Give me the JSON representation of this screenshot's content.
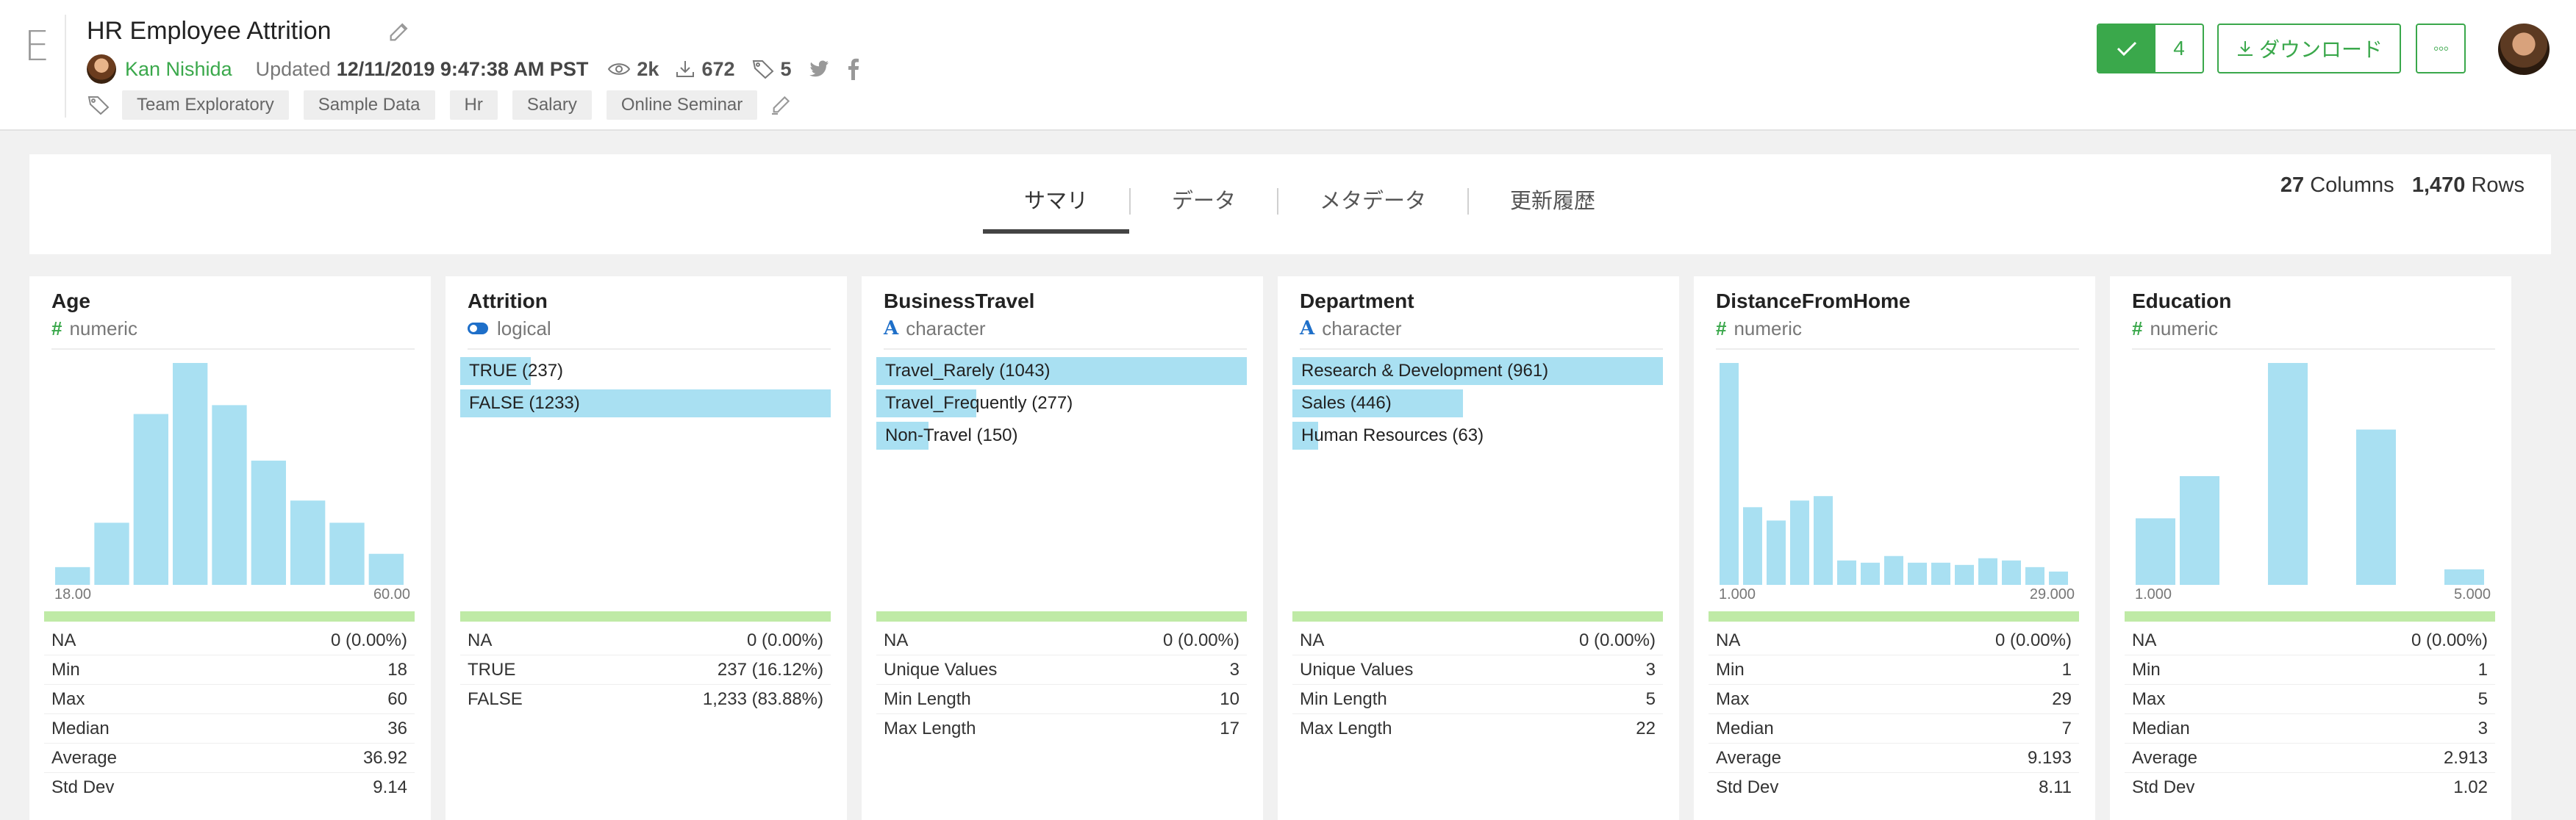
{
  "app": {
    "logo_letter": "E"
  },
  "header": {
    "title": "HR Employee Attrition",
    "author": "Kan Nishida",
    "updated_label": "Updated",
    "updated": "12/11/2019 9:47:38 AM PST",
    "views": "2k",
    "downloads": "672",
    "tag_count": "5",
    "tags": [
      "Team Exploratory",
      "Sample Data",
      "Hr",
      "Salary",
      "Online Seminar"
    ],
    "check_count": "4",
    "download_label": "ダウンロード",
    "more_label": "◦◦◦"
  },
  "tabs": [
    "サマリ",
    "データ",
    "メタデータ",
    "更新履歴"
  ],
  "active_tab": "サマリ",
  "summary": {
    "columns": "27",
    "columns_label": "Columns",
    "rows": "1,470",
    "rows_label": "Rows"
  },
  "colors": {
    "accent": "#3aa84b",
    "bar": "#a9e0f2",
    "quality": "#bfeaa6",
    "type_char": "#1e6fc9"
  },
  "columns": [
    {
      "name": "Age",
      "type": "numeric",
      "type_icon": "hash-icon",
      "axis_min": "18.00",
      "axis_max": "60.00",
      "chart_data": {
        "type": "bar",
        "values": [
          8,
          28,
          77,
          100,
          81,
          56,
          38,
          28,
          14
        ],
        "ylim": [
          0,
          100
        ]
      },
      "stats": [
        [
          "NA",
          "0 (0.00%)"
        ],
        [
          "Min",
          "18"
        ],
        [
          "Max",
          "60"
        ],
        [
          "Median",
          "36"
        ],
        [
          "Average",
          "36.92"
        ],
        [
          "Std Dev",
          "9.14"
        ]
      ]
    },
    {
      "name": "Attrition",
      "type": "logical",
      "type_icon": "toggle-icon",
      "bars": [
        {
          "label": "TRUE (237)",
          "frac": 0.19
        },
        {
          "label": "FALSE (1233)",
          "frac": 1.0
        }
      ],
      "stats": [
        [
          "NA",
          "0 (0.00%)"
        ],
        [
          "TRUE",
          "237 (16.12%)"
        ],
        [
          "FALSE",
          "1,233 (83.88%)"
        ]
      ]
    },
    {
      "name": "BusinessTravel",
      "type": "character",
      "type_icon": "character-icon",
      "bars": [
        {
          "label": "Travel_Rarely (1043)",
          "frac": 1.0
        },
        {
          "label": "Travel_Frequently (277)",
          "frac": 0.27
        },
        {
          "label": "Non-Travel (150)",
          "frac": 0.14
        }
      ],
      "stats": [
        [
          "NA",
          "0 (0.00%)"
        ],
        [
          "Unique Values",
          "3"
        ],
        [
          "Min Length",
          "10"
        ],
        [
          "Max Length",
          "17"
        ]
      ]
    },
    {
      "name": "Department",
      "type": "character",
      "type_icon": "character-icon",
      "bars": [
        {
          "label": "Research & Development (961)",
          "frac": 1.0
        },
        {
          "label": "Sales (446)",
          "frac": 0.46
        },
        {
          "label": "Human Resources (63)",
          "frac": 0.07
        }
      ],
      "stats": [
        [
          "NA",
          "0 (0.00%)"
        ],
        [
          "Unique Values",
          "3"
        ],
        [
          "Min Length",
          "5"
        ],
        [
          "Max Length",
          "22"
        ]
      ]
    },
    {
      "name": "DistanceFromHome",
      "type": "numeric",
      "type_icon": "hash-icon",
      "axis_min": "1.000",
      "axis_max": "29.000",
      "chart_data": {
        "type": "bar",
        "values": [
          100,
          35,
          29,
          38,
          40,
          11,
          10,
          13,
          10,
          10,
          9,
          12,
          11,
          8,
          6
        ],
        "ylim": [
          0,
          100
        ]
      },
      "stats": [
        [
          "NA",
          "0 (0.00%)"
        ],
        [
          "Min",
          "1"
        ],
        [
          "Max",
          "29"
        ],
        [
          "Median",
          "7"
        ],
        [
          "Average",
          "9.193"
        ],
        [
          "Std Dev",
          "8.11"
        ]
      ]
    },
    {
      "name": "Education",
      "type": "numeric",
      "type_icon": "hash-icon",
      "axis_min": "1.000",
      "axis_max": "5.000",
      "chart_data": {
        "type": "bar",
        "values": [
          30,
          49,
          0,
          100,
          0,
          70,
          0,
          7
        ],
        "ylim": [
          0,
          100
        ]
      },
      "stats": [
        [
          "NA",
          "0 (0.00%)"
        ],
        [
          "Min",
          "1"
        ],
        [
          "Max",
          "5"
        ],
        [
          "Median",
          "3"
        ],
        [
          "Average",
          "2.913"
        ],
        [
          "Std Dev",
          "1.02"
        ]
      ]
    }
  ]
}
